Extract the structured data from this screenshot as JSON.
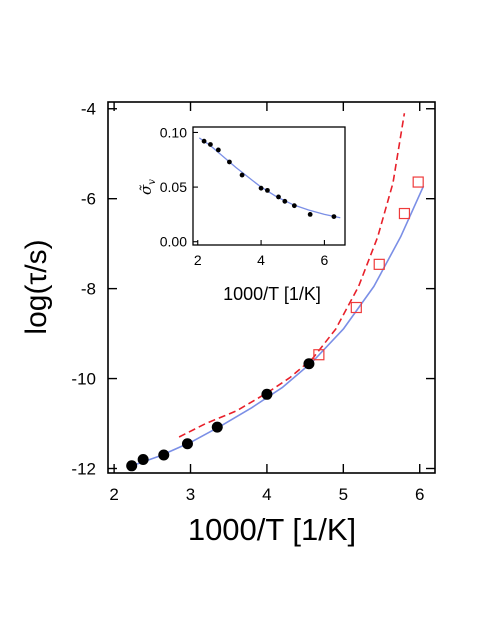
{
  "chart_data": [
    {
      "panel": "main",
      "type": "scatter",
      "title": "",
      "xlabel": "1000/T [1/K]",
      "ylabel": "log(τ/s)",
      "xlim": [
        1.92,
        6.2
      ],
      "ylim": [
        -12.1,
        -3.85
      ],
      "xticks": [
        2,
        3,
        4,
        5,
        6
      ],
      "xtick_labels": [
        "2",
        "3",
        "4",
        "5",
        "6"
      ],
      "yticks": [
        -4,
        -6,
        -8,
        -10,
        -12
      ],
      "ytick_labels": [
        "-4",
        "-6",
        "-8",
        "-10",
        "-12"
      ],
      "grid": false,
      "legend": "none",
      "series": [
        {
          "style": "filled-circles",
          "color": "#000000",
          "x": [
            2.23,
            2.38,
            2.65,
            2.96,
            3.35,
            4.0,
            4.55
          ],
          "y": [
            -11.94,
            -11.8,
            -11.7,
            -11.45,
            -11.08,
            -10.35,
            -9.67
          ]
        },
        {
          "style": "open-squares",
          "color": "#ef3b3b",
          "x": [
            4.68,
            5.17,
            5.47,
            5.8,
            5.98
          ],
          "y": [
            -9.47,
            -8.42,
            -7.46,
            -6.33,
            -5.63
          ]
        },
        {
          "style": "dashed-line",
          "color": "#e8202a",
          "x": [
            2.85,
            3.2,
            3.6,
            4.0,
            4.3,
            4.6,
            4.9,
            5.2,
            5.45,
            5.65,
            5.8
          ],
          "y": [
            -11.3,
            -11.0,
            -10.72,
            -10.32,
            -9.98,
            -9.55,
            -8.9,
            -7.95,
            -6.85,
            -5.65,
            -4.1
          ]
        },
        {
          "style": "solid-line",
          "color": "#7b8fe6",
          "x": [
            2.25,
            2.6,
            3.0,
            3.4,
            3.8,
            4.2,
            4.6,
            5.0,
            5.4,
            5.75,
            6.05
          ],
          "y": [
            -11.93,
            -11.72,
            -11.42,
            -11.05,
            -10.65,
            -10.2,
            -9.62,
            -8.9,
            -7.95,
            -6.85,
            -5.72
          ]
        }
      ]
    },
    {
      "panel": "inset",
      "type": "scatter",
      "title": "",
      "xlabel": "1000/T [1/K]",
      "ylabel": "σ̃",
      "ylabel_subscript": "v",
      "xlim": [
        1.85,
        6.65
      ],
      "ylim": [
        -0.003,
        0.105
      ],
      "xticks": [
        2,
        4,
        6
      ],
      "xtick_labels": [
        "2",
        "4",
        "6"
      ],
      "yticks": [
        0.0,
        0.05,
        0.1
      ],
      "ytick_labels": [
        "0.00",
        "0.05",
        "0.10"
      ],
      "grid": false,
      "legend": "none",
      "series": [
        {
          "style": "filled-circles",
          "color": "#000000",
          "x": [
            2.2,
            2.4,
            2.65,
            3.0,
            3.4,
            4.0,
            4.2,
            4.55,
            4.75,
            5.05,
            5.55,
            6.3
          ],
          "y": [
            0.092,
            0.089,
            0.084,
            0.073,
            0.061,
            0.049,
            0.047,
            0.041,
            0.037,
            0.033,
            0.025,
            0.023
          ]
        },
        {
          "style": "solid-line",
          "color": "#7b8fe6",
          "x": [
            2.05,
            2.4,
            2.8,
            3.2,
            3.6,
            4.0,
            4.5,
            5.0,
            5.5,
            6.0,
            6.5
          ],
          "y": [
            0.095,
            0.088,
            0.078,
            0.068,
            0.059,
            0.05,
            0.041,
            0.034,
            0.029,
            0.025,
            0.022
          ]
        }
      ]
    }
  ]
}
